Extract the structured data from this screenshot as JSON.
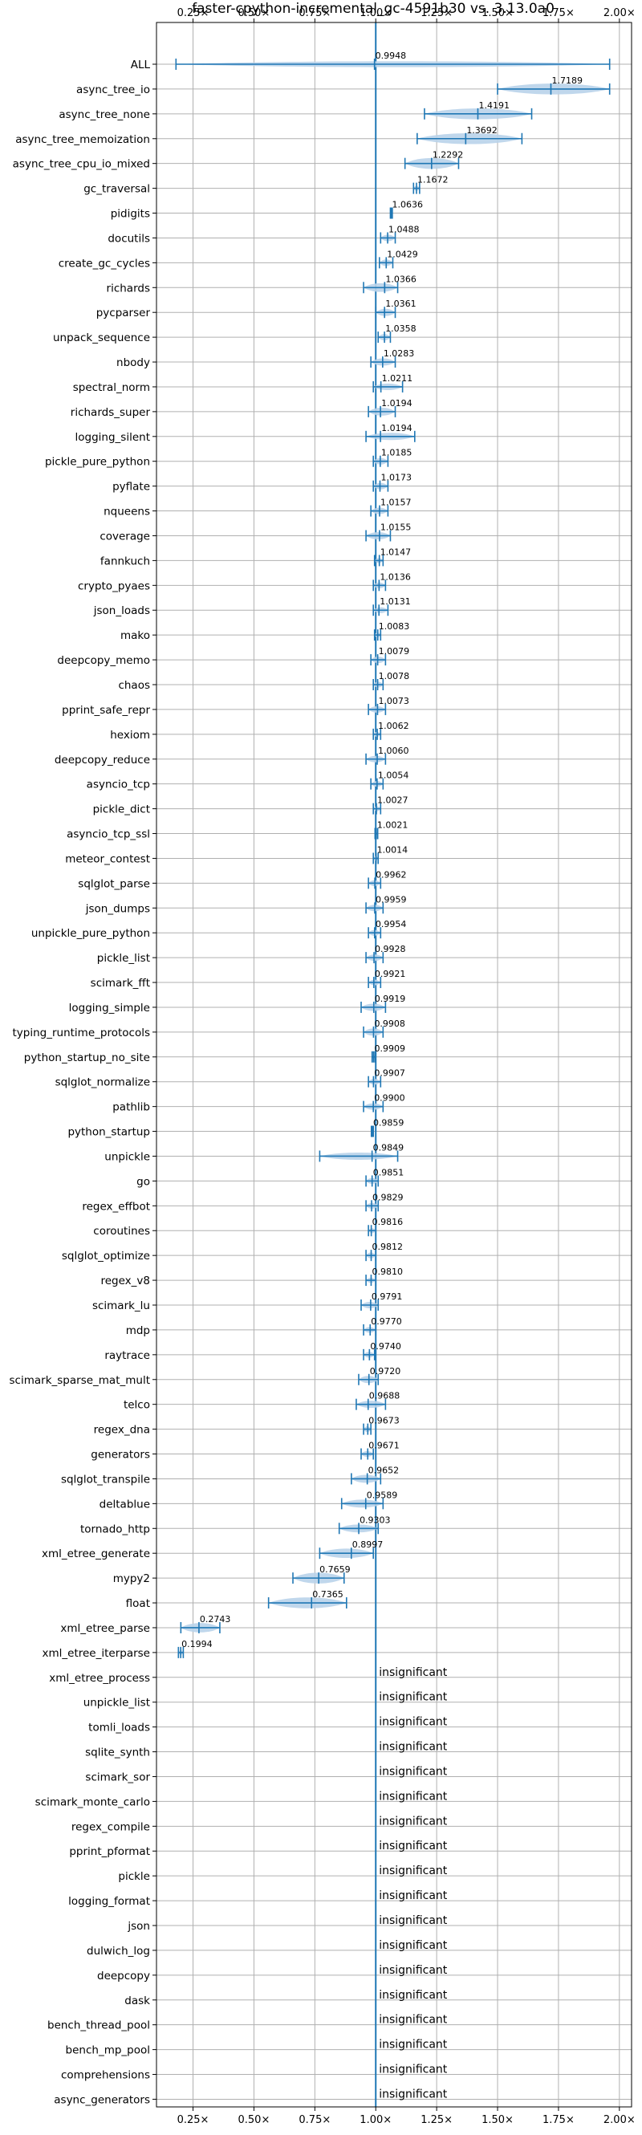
{
  "chart_data": {
    "type": "violin",
    "title": "faster-cpython-incremental_gc-4591b30 vs. 3.13.0a0",
    "xlabel": "",
    "ylabel": "",
    "xlim": [
      0.1,
      2.05
    ],
    "xticks": [
      0.25,
      0.5,
      0.75,
      1.0,
      1.25,
      1.5,
      1.75,
      2.0
    ],
    "xtick_labels": [
      "0.25×",
      "0.50×",
      "0.75×",
      "1.00×",
      "1.25×",
      "1.50×",
      "1.75×",
      "2.00×"
    ],
    "reference_line": 1.0,
    "grid": true,
    "colors": {
      "violin": "#1f77b4",
      "violin_fill": "#b9d3ea",
      "grid": "#b0b0b0",
      "ref_line": "#1f77b4"
    },
    "insignificant_label": "insignificant",
    "benchmarks": [
      {
        "name": "ALL",
        "value": 0.9948,
        "label": "0.9948",
        "min": 0.18,
        "max": 1.96,
        "spread": 0.03
      },
      {
        "name": "async_tree_io",
        "value": 1.7189,
        "label": "1.7189",
        "min": 1.5,
        "max": 1.96,
        "spread": 0.2
      },
      {
        "name": "async_tree_none",
        "value": 1.4191,
        "label": "1.4191",
        "min": 1.2,
        "max": 1.64,
        "spread": 0.2
      },
      {
        "name": "async_tree_memoization",
        "value": 1.3692,
        "label": "1.3692",
        "min": 1.17,
        "max": 1.6,
        "spread": 0.2
      },
      {
        "name": "async_tree_cpu_io_mixed",
        "value": 1.2292,
        "label": "1.2292",
        "min": 1.12,
        "max": 1.34,
        "spread": 0.15
      },
      {
        "name": "gc_traversal",
        "value": 1.1672,
        "label": "1.1672",
        "min": 1.155,
        "max": 1.18,
        "spread": 0.02
      },
      {
        "name": "pidigits",
        "value": 1.0636,
        "label": "1.0636",
        "min": 1.06,
        "max": 1.068,
        "spread": 0.005
      },
      {
        "name": "docutils",
        "value": 1.0488,
        "label": "1.0488",
        "min": 1.02,
        "max": 1.08,
        "spread": 0.04
      },
      {
        "name": "create_gc_cycles",
        "value": 1.0429,
        "label": "1.0429",
        "min": 1.015,
        "max": 1.07,
        "spread": 0.04
      },
      {
        "name": "richards",
        "value": 1.0366,
        "label": "1.0366",
        "min": 0.95,
        "max": 1.09,
        "spread": 0.07
      },
      {
        "name": "pycparser",
        "value": 1.0361,
        "label": "1.0361",
        "min": 1.0,
        "max": 1.08,
        "spread": 0.05
      },
      {
        "name": "unpack_sequence",
        "value": 1.0358,
        "label": "1.0358",
        "min": 1.01,
        "max": 1.06,
        "spread": 0.04
      },
      {
        "name": "nbody",
        "value": 1.0283,
        "label": "1.0283",
        "min": 0.98,
        "max": 1.08,
        "spread": 0.05
      },
      {
        "name": "spectral_norm",
        "value": 1.0211,
        "label": "1.0211",
        "min": 0.99,
        "max": 1.11,
        "spread": 0.04
      },
      {
        "name": "richards_super",
        "value": 1.0194,
        "label": "1.0194",
        "min": 0.97,
        "max": 1.08,
        "spread": 0.06
      },
      {
        "name": "logging_silent",
        "value": 1.0194,
        "label": "1.0194",
        "min": 0.96,
        "max": 1.16,
        "spread": 0.05
      },
      {
        "name": "pickle_pure_python",
        "value": 1.0185,
        "label": "1.0185",
        "min": 0.99,
        "max": 1.05,
        "spread": 0.04
      },
      {
        "name": "pyflate",
        "value": 1.0173,
        "label": "1.0173",
        "min": 0.99,
        "max": 1.05,
        "spread": 0.04
      },
      {
        "name": "nqueens",
        "value": 1.0157,
        "label": "1.0157",
        "min": 0.98,
        "max": 1.05,
        "spread": 0.04
      },
      {
        "name": "coverage",
        "value": 1.0155,
        "label": "1.0155",
        "min": 0.96,
        "max": 1.06,
        "spread": 0.05
      },
      {
        "name": "fannkuch",
        "value": 1.0147,
        "label": "1.0147",
        "min": 0.995,
        "max": 1.03,
        "spread": 0.02
      },
      {
        "name": "crypto_pyaes",
        "value": 1.0136,
        "label": "1.0136",
        "min": 0.99,
        "max": 1.04,
        "spread": 0.03
      },
      {
        "name": "json_loads",
        "value": 1.0131,
        "label": "1.0131",
        "min": 0.99,
        "max": 1.05,
        "spread": 0.03
      },
      {
        "name": "mako",
        "value": 1.0083,
        "label": "1.0083",
        "min": 0.995,
        "max": 1.02,
        "spread": 0.02
      },
      {
        "name": "deepcopy_memo",
        "value": 1.0079,
        "label": "1.0079",
        "min": 0.98,
        "max": 1.04,
        "spread": 0.04
      },
      {
        "name": "chaos",
        "value": 1.0078,
        "label": "1.0078",
        "min": 0.99,
        "max": 1.03,
        "spread": 0.03
      },
      {
        "name": "pprint_safe_repr",
        "value": 1.0073,
        "label": "1.0073",
        "min": 0.97,
        "max": 1.04,
        "spread": 0.04
      },
      {
        "name": "hexiom",
        "value": 1.0062,
        "label": "1.0062",
        "min": 0.99,
        "max": 1.02,
        "spread": 0.02
      },
      {
        "name": "deepcopy_reduce",
        "value": 1.006,
        "label": "1.0060",
        "min": 0.96,
        "max": 1.04,
        "spread": 0.04
      },
      {
        "name": "asyncio_tcp",
        "value": 1.0054,
        "label": "1.0054",
        "min": 0.98,
        "max": 1.03,
        "spread": 0.03
      },
      {
        "name": "pickle_dict",
        "value": 1.0027,
        "label": "1.0027",
        "min": 0.99,
        "max": 1.02,
        "spread": 0.02
      },
      {
        "name": "asyncio_tcp_ssl",
        "value": 1.0021,
        "label": "1.0021",
        "min": 0.997,
        "max": 1.008,
        "spread": 0.005
      },
      {
        "name": "meteor_contest",
        "value": 1.0014,
        "label": "1.0014",
        "min": 0.99,
        "max": 1.01,
        "spread": 0.015
      },
      {
        "name": "sqlglot_parse",
        "value": 0.9962,
        "label": "0.9962",
        "min": 0.97,
        "max": 1.02,
        "spread": 0.03
      },
      {
        "name": "json_dumps",
        "value": 0.9959,
        "label": "0.9959",
        "min": 0.96,
        "max": 1.03,
        "spread": 0.04
      },
      {
        "name": "unpickle_pure_python",
        "value": 0.9954,
        "label": "0.9954",
        "min": 0.97,
        "max": 1.02,
        "spread": 0.03
      },
      {
        "name": "pickle_list",
        "value": 0.9928,
        "label": "0.9928",
        "min": 0.96,
        "max": 1.03,
        "spread": 0.04
      },
      {
        "name": "scimark_fft",
        "value": 0.9921,
        "label": "0.9921",
        "min": 0.97,
        "max": 1.02,
        "spread": 0.03
      },
      {
        "name": "logging_simple",
        "value": 0.9919,
        "label": "0.9919",
        "min": 0.94,
        "max": 1.04,
        "spread": 0.05
      },
      {
        "name": "typing_runtime_protocols",
        "value": 0.9908,
        "label": "0.9908",
        "min": 0.95,
        "max": 1.03,
        "spread": 0.05
      },
      {
        "name": "python_startup_no_site",
        "value": 0.9909,
        "label": "0.9909",
        "min": 0.985,
        "max": 0.997,
        "spread": 0.01
      },
      {
        "name": "sqlglot_normalize",
        "value": 0.9907,
        "label": "0.9907",
        "min": 0.97,
        "max": 1.02,
        "spread": 0.03
      },
      {
        "name": "pathlib",
        "value": 0.99,
        "label": "0.9900",
        "min": 0.95,
        "max": 1.03,
        "spread": 0.04
      },
      {
        "name": "python_startup",
        "value": 0.9859,
        "label": "0.9859",
        "min": 0.982,
        "max": 0.99,
        "spread": 0.006
      },
      {
        "name": "unpickle",
        "value": 0.9849,
        "label": "0.9849",
        "min": 0.77,
        "max": 1.09,
        "spread": 0.05
      },
      {
        "name": "go",
        "value": 0.9851,
        "label": "0.9851",
        "min": 0.96,
        "max": 1.01,
        "spread": 0.03
      },
      {
        "name": "regex_effbot",
        "value": 0.9829,
        "label": "0.9829",
        "min": 0.96,
        "max": 1.01,
        "spread": 0.03
      },
      {
        "name": "coroutines",
        "value": 0.9816,
        "label": "0.9816",
        "min": 0.97,
        "max": 1.0,
        "spread": 0.02
      },
      {
        "name": "sqlglot_optimize",
        "value": 0.9812,
        "label": "0.9812",
        "min": 0.96,
        "max": 1.0,
        "spread": 0.03
      },
      {
        "name": "regex_v8",
        "value": 0.981,
        "label": "0.9810",
        "min": 0.96,
        "max": 1.0,
        "spread": 0.02
      },
      {
        "name": "scimark_lu",
        "value": 0.9791,
        "label": "0.9791",
        "min": 0.94,
        "max": 1.01,
        "spread": 0.04
      },
      {
        "name": "mdp",
        "value": 0.977,
        "label": "0.9770",
        "min": 0.95,
        "max": 1.0,
        "spread": 0.03
      },
      {
        "name": "raytrace",
        "value": 0.974,
        "label": "0.9740",
        "min": 0.95,
        "max": 0.995,
        "spread": 0.03
      },
      {
        "name": "scimark_sparse_mat_mult",
        "value": 0.972,
        "label": "0.9720",
        "min": 0.93,
        "max": 1.01,
        "spread": 0.05
      },
      {
        "name": "telco",
        "value": 0.9688,
        "label": "0.9688",
        "min": 0.92,
        "max": 1.04,
        "spread": 0.05
      },
      {
        "name": "regex_dna",
        "value": 0.9673,
        "label": "0.9673",
        "min": 0.95,
        "max": 0.98,
        "spread": 0.03
      },
      {
        "name": "generators",
        "value": 0.9671,
        "label": "0.9671",
        "min": 0.94,
        "max": 0.99,
        "spread": 0.03
      },
      {
        "name": "sqlglot_transpile",
        "value": 0.9652,
        "label": "0.9652",
        "min": 0.9,
        "max": 1.02,
        "spread": 0.06
      },
      {
        "name": "deltablue",
        "value": 0.9589,
        "label": "0.9589",
        "min": 0.86,
        "max": 1.03,
        "spread": 0.06
      },
      {
        "name": "tornado_http",
        "value": 0.9303,
        "label": "0.9303",
        "min": 0.85,
        "max": 1.01,
        "spread": 0.06
      },
      {
        "name": "xml_etree_generate",
        "value": 0.8997,
        "label": "0.8997",
        "min": 0.77,
        "max": 0.99,
        "spread": 0.08
      },
      {
        "name": "mypy2",
        "value": 0.7659,
        "label": "0.7659",
        "min": 0.66,
        "max": 0.87,
        "spread": 0.12
      },
      {
        "name": "float",
        "value": 0.7365,
        "label": "0.7365",
        "min": 0.56,
        "max": 0.88,
        "spread": 0.15
      },
      {
        "name": "xml_etree_parse",
        "value": 0.2743,
        "label": "0.2743",
        "min": 0.2,
        "max": 0.36,
        "spread": 0.08
      },
      {
        "name": "xml_etree_iterparse",
        "value": 0.1994,
        "label": "0.1994",
        "min": 0.19,
        "max": 0.21,
        "spread": 0.015
      },
      {
        "name": "xml_etree_process",
        "insignificant": true
      },
      {
        "name": "unpickle_list",
        "insignificant": true
      },
      {
        "name": "tomli_loads",
        "insignificant": true
      },
      {
        "name": "sqlite_synth",
        "insignificant": true
      },
      {
        "name": "scimark_sor",
        "insignificant": true
      },
      {
        "name": "scimark_monte_carlo",
        "insignificant": true
      },
      {
        "name": "regex_compile",
        "insignificant": true
      },
      {
        "name": "pprint_pformat",
        "insignificant": true
      },
      {
        "name": "pickle",
        "insignificant": true
      },
      {
        "name": "logging_format",
        "insignificant": true
      },
      {
        "name": "json",
        "insignificant": true
      },
      {
        "name": "dulwich_log",
        "insignificant": true
      },
      {
        "name": "deepcopy",
        "insignificant": true
      },
      {
        "name": "dask",
        "insignificant": true
      },
      {
        "name": "bench_thread_pool",
        "insignificant": true
      },
      {
        "name": "bench_mp_pool",
        "insignificant": true
      },
      {
        "name": "comprehensions",
        "insignificant": true
      },
      {
        "name": "async_generators",
        "insignificant": true
      }
    ]
  }
}
